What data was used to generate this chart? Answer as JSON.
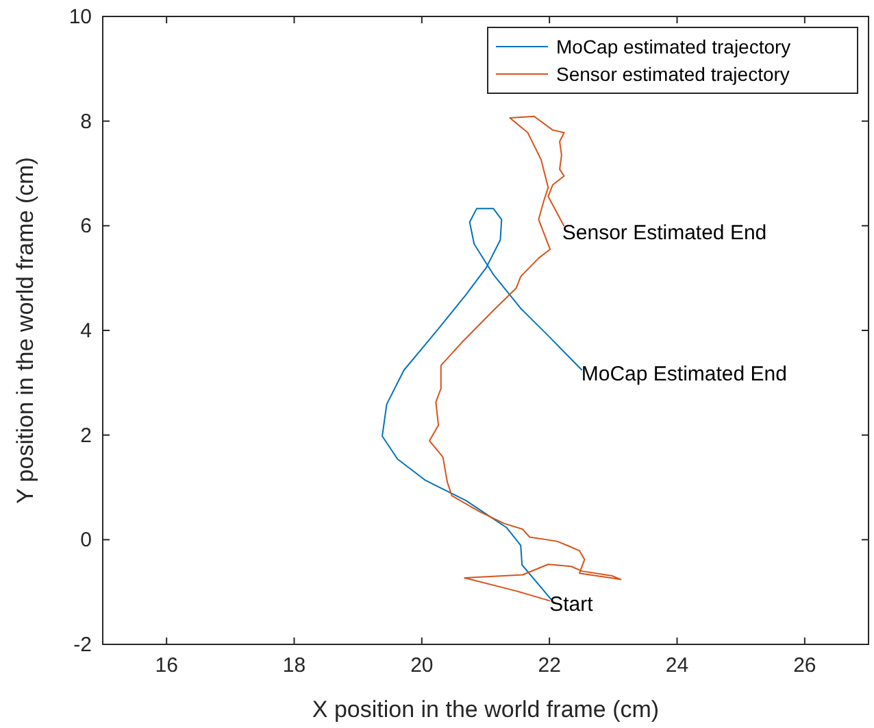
{
  "chart_data": {
    "type": "line",
    "xlabel": "X position in the world frame (cm)",
    "ylabel": "Y position in the world frame (cm)",
    "xlim": [
      15,
      27
    ],
    "xticks": [
      16,
      18,
      20,
      22,
      24,
      26
    ],
    "ylim": [
      -2,
      10
    ],
    "yticks": [
      -2,
      0,
      2,
      4,
      6,
      8,
      10
    ],
    "grid": false,
    "legend": "top right",
    "line_style": "solid",
    "marker": "none",
    "series": [
      {
        "name": "MoCap estimated trajectory",
        "color": "#0072bd",
        "x": [
          22.04,
          21.57,
          21.55,
          21.33,
          20.69,
          20.05,
          19.62,
          19.38,
          19.45,
          19.72,
          20.26,
          20.69,
          21.01,
          21.23,
          21.25,
          21.12,
          20.86,
          20.75,
          20.82,
          21.12,
          21.55,
          21.98,
          22.51
        ],
        "values": [
          -1.16,
          -0.48,
          -0.11,
          0.23,
          0.75,
          1.14,
          1.54,
          1.98,
          2.59,
          3.24,
          4.03,
          4.68,
          5.2,
          5.73,
          6.12,
          6.33,
          6.33,
          6.07,
          5.65,
          5.07,
          4.42,
          3.9,
          3.24
        ]
      },
      {
        "name": "Sensor estimated trajectory",
        "color": "#d95319",
        "x": [
          22.01,
          21.48,
          20.67,
          21.58,
          21.98,
          22.34,
          22.51,
          22.98,
          23.12,
          22.47,
          22.55,
          22.47,
          22.3,
          22.12,
          21.69,
          21.58,
          21.29,
          20.9,
          20.47,
          20.4,
          20.33,
          20.12,
          20.26,
          20.22,
          20.3,
          20.3,
          20.62,
          21.12,
          21.48,
          21.55,
          21.83,
          22.01,
          21.83,
          21.91,
          21.98,
          21.87,
          21.66,
          21.38,
          21.76,
          22.05,
          22.23,
          22.16,
          22.19,
          22.16,
          22.23,
          22.05,
          21.98,
          22.23
        ],
        "values": [
          -1.17,
          -0.98,
          -0.73,
          -0.67,
          -0.47,
          -0.51,
          -0.6,
          -0.69,
          -0.76,
          -0.64,
          -0.38,
          -0.21,
          -0.12,
          -0.03,
          0.05,
          0.2,
          0.31,
          0.54,
          0.84,
          1.1,
          1.58,
          1.89,
          2.19,
          2.63,
          2.89,
          3.33,
          3.76,
          4.38,
          4.81,
          5.03,
          5.38,
          5.55,
          6.12,
          6.47,
          6.73,
          7.26,
          7.78,
          8.06,
          8.09,
          7.83,
          7.78,
          7.61,
          7.35,
          7.08,
          6.95,
          6.78,
          6.56,
          5.99
        ]
      }
    ],
    "annotations": [
      {
        "text": "Start",
        "x": 22.0,
        "y": -1.2
      },
      {
        "text": "MoCap Estimated End",
        "x": 22.5,
        "y": 3.2
      },
      {
        "text": "Sensor Estimated End",
        "x": 22.2,
        "y": 5.9
      }
    ]
  }
}
